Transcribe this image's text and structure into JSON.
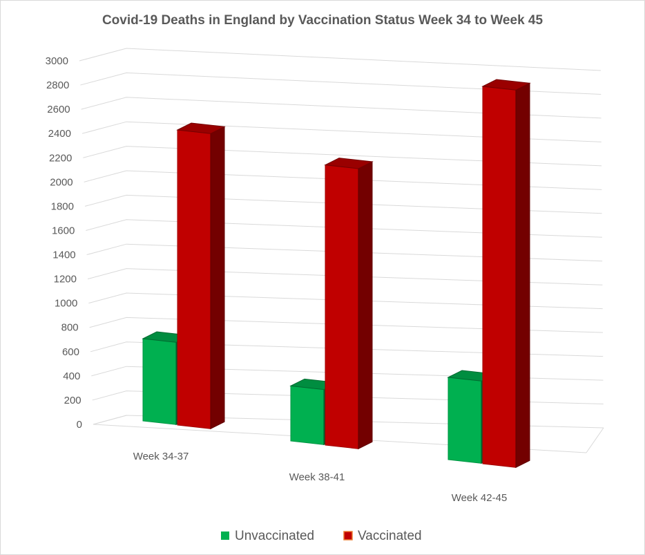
{
  "chart_data": {
    "type": "bar",
    "title": "Covid-19 Deaths in England by Vaccination Status Week 34 to Week 45",
    "xlabel": "",
    "ylabel": "",
    "categories": [
      "Week 34-37",
      "Week 38-41",
      "Week 42-45"
    ],
    "series": [
      {
        "name": "Unvaccinated",
        "values": [
          680,
          450,
          680
        ],
        "color": "#00b050"
      },
      {
        "name": "Vaccinated",
        "values": [
          2440,
          2290,
          3120
        ],
        "color": "#c00000"
      }
    ],
    "ylim": [
      0,
      3000
    ],
    "yticks": [
      0,
      200,
      400,
      600,
      800,
      1000,
      1200,
      1400,
      1600,
      1800,
      2000,
      2200,
      2400,
      2600,
      2800,
      3000
    ],
    "grid": true,
    "legend_position": "bottom"
  }
}
